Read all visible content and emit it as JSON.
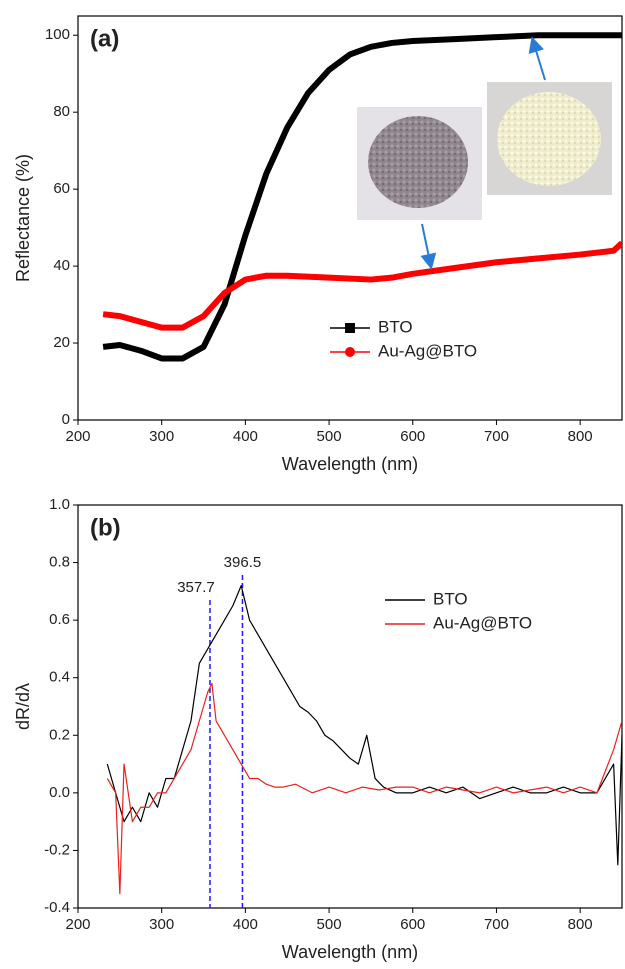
{
  "chart_data": [
    {
      "type": "line",
      "label": "(a)",
      "xlabel": "Wavelength (nm)",
      "ylabel": "Reflectance (%)",
      "xlim": [
        200,
        850
      ],
      "ylim": [
        0,
        105
      ],
      "xticks": [
        200,
        300,
        400,
        500,
        600,
        700,
        800
      ],
      "yticks": [
        0,
        20,
        40,
        60,
        80,
        100
      ],
      "legend_position": "lower center",
      "line_width": 6,
      "series": [
        {
          "name": "BTO",
          "color": "#000000",
          "marker": "square",
          "x": [
            230,
            250,
            275,
            300,
            325,
            350,
            375,
            400,
            425,
            450,
            475,
            500,
            525,
            550,
            575,
            600,
            650,
            700,
            750,
            800,
            850
          ],
          "values": [
            19,
            19.5,
            18,
            16,
            16,
            19,
            30,
            48,
            64,
            76,
            85,
            91,
            95,
            97,
            98,
            98.5,
            99,
            99.5,
            100,
            100,
            100
          ]
        },
        {
          "name": "Au-Ag@BTO",
          "color": "#ff0000",
          "marker": "circle",
          "x": [
            230,
            250,
            275,
            300,
            325,
            350,
            375,
            400,
            425,
            450,
            500,
            550,
            575,
            600,
            650,
            700,
            750,
            800,
            840,
            850
          ],
          "values": [
            27.5,
            27,
            25.5,
            24,
            24,
            27,
            33,
            36.5,
            37.5,
            37.5,
            37,
            36.5,
            37,
            38,
            39.5,
            41,
            42,
            43,
            44,
            46
          ]
        }
      ]
    },
    {
      "type": "line",
      "label": "(b)",
      "xlabel": "Wavelength (nm)",
      "ylabel": "dR/dλ",
      "xlim": [
        200,
        850
      ],
      "ylim": [
        -0.4,
        1.0
      ],
      "xticks": [
        200,
        300,
        400,
        500,
        600,
        700,
        800
      ],
      "yticks": [
        -0.4,
        -0.2,
        {
          "value": 0,
          "label": "0.0"
        },
        0.2,
        0.4,
        0.6,
        0.8,
        {
          "value": 1,
          "label": "1.0"
        }
      ],
      "vlines": [
        357.7,
        396.5
      ],
      "vline_color": "#1a1aff",
      "legend_position": "upper right",
      "line_width": 1.2,
      "series": [
        {
          "name": "BTO",
          "color": "#000000",
          "x": [
            235,
            245,
            255,
            265,
            275,
            285,
            295,
            305,
            315,
            325,
            335,
            345,
            355,
            365,
            375,
            385,
            395,
            405,
            415,
            425,
            435,
            445,
            455,
            465,
            475,
            485,
            495,
            505,
            515,
            525,
            535,
            545,
            555,
            565,
            580,
            600,
            620,
            640,
            660,
            680,
            700,
            720,
            740,
            760,
            780,
            800,
            820,
            840,
            845,
            850
          ],
          "values": [
            0.1,
            0,
            -0.1,
            -0.05,
            -0.1,
            0,
            -0.05,
            0.05,
            0.05,
            0.15,
            0.25,
            0.45,
            0.5,
            0.55,
            0.6,
            0.65,
            0.72,
            0.6,
            0.55,
            0.5,
            0.45,
            0.4,
            0.35,
            0.3,
            0.28,
            0.25,
            0.2,
            0.18,
            0.15,
            0.12,
            0.1,
            0.2,
            0.05,
            0.02,
            0,
            0,
            0.02,
            0,
            0.02,
            -0.02,
            0,
            0.02,
            0,
            0,
            0.02,
            0,
            0,
            0.1,
            -0.25,
            0.2
          ]
        },
        {
          "name": "Au-Ag@BTO",
          "color": "#e8221a",
          "x": [
            235,
            245,
            250,
            255,
            265,
            275,
            285,
            295,
            305,
            315,
            325,
            335,
            345,
            355,
            360,
            365,
            375,
            385,
            395,
            405,
            415,
            425,
            435,
            445,
            460,
            480,
            500,
            520,
            540,
            560,
            580,
            600,
            620,
            640,
            660,
            680,
            700,
            720,
            740,
            760,
            780,
            800,
            820,
            840,
            850
          ],
          "values": [
            0.05,
            0,
            -0.35,
            0.1,
            -0.1,
            -0.05,
            -0.05,
            0,
            0,
            0.05,
            0.1,
            0.15,
            0.25,
            0.35,
            0.38,
            0.25,
            0.2,
            0.15,
            0.1,
            0.05,
            0.05,
            0.03,
            0.02,
            0.02,
            0.03,
            0,
            0.02,
            0,
            0.02,
            0.01,
            0.02,
            0.02,
            0,
            0.02,
            0.01,
            0,
            0.02,
            0,
            0.01,
            0.02,
            0,
            0.02,
            0,
            0.15,
            0.25
          ]
        }
      ]
    }
  ]
}
